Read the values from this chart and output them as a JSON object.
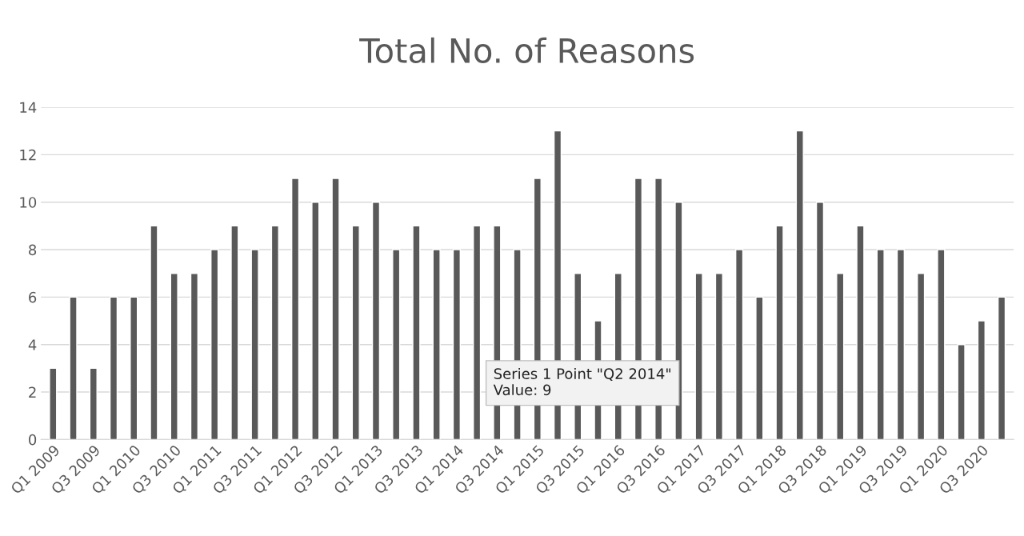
{
  "chart_data": {
    "type": "bar",
    "title": "Total No. of Reasons",
    "categories": [
      "Q1 2009",
      null,
      "Q3 2009",
      null,
      "Q1 2010",
      null,
      "Q3 2010",
      null,
      "Q1 2011",
      null,
      "Q3 2011",
      null,
      "Q1 2012",
      null,
      "Q3 2012",
      null,
      "Q1 2013",
      null,
      "Q3 2013",
      null,
      "Q1 2014",
      null,
      "Q3 2014",
      null,
      "Q1 2015",
      null,
      "Q3 2015",
      null,
      "Q1 2016",
      null,
      "Q3 2016",
      null,
      "Q1 2017",
      null,
      "Q3 2017",
      null,
      "Q1 2018",
      null,
      "Q3 2018",
      null,
      "Q1 2019",
      null,
      "Q3 2019",
      null,
      "Q1 2020",
      null,
      "Q3 2020",
      null
    ],
    "values": [
      3,
      6,
      3,
      6,
      6,
      9,
      7,
      7,
      8,
      9,
      8,
      9,
      11,
      10,
      11,
      9,
      10,
      8,
      9,
      8,
      8,
      9,
      9,
      8,
      11,
      13,
      7,
      5,
      7,
      11,
      11,
      10,
      7,
      7,
      8,
      6,
      9,
      13,
      10,
      7,
      9,
      8,
      8,
      7,
      8,
      4,
      5,
      6
    ],
    "color": "#595959",
    "ylim": [
      0,
      14
    ],
    "yticks": [
      0,
      2,
      4,
      6,
      8,
      10,
      12,
      14
    ],
    "grid": "y",
    "annotations": [
      "Series 1 Point \"Q2 2014\"\nValue: 9"
    ]
  }
}
